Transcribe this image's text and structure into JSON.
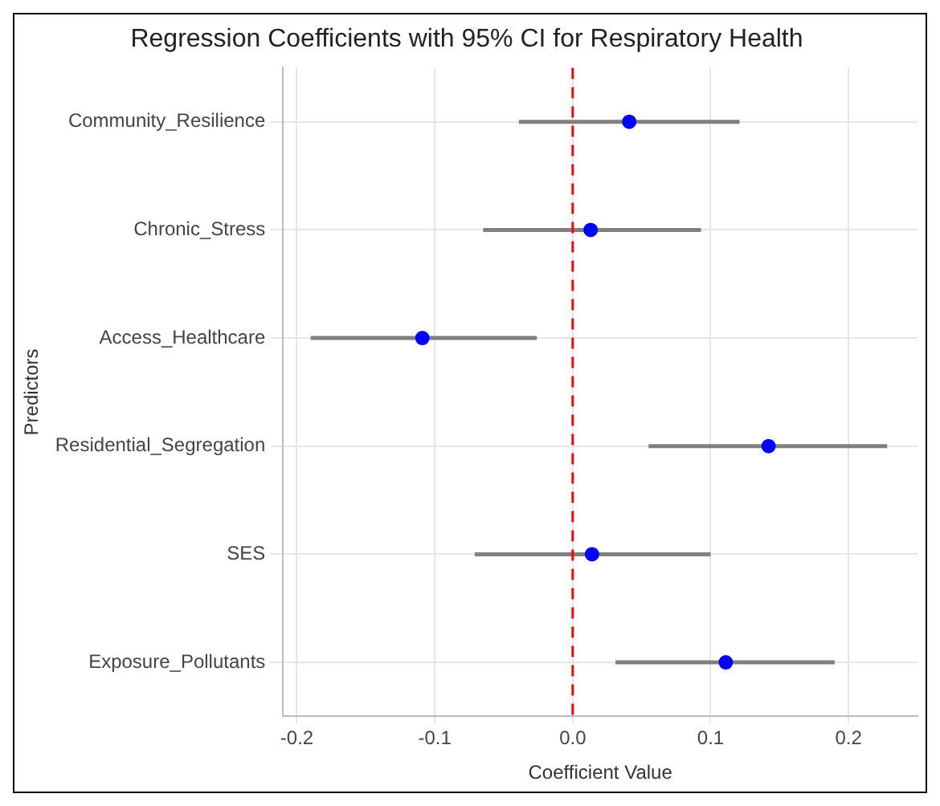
{
  "chart_data": {
    "type": "scatter",
    "title": "Regression Coefficients with 95% CI for Respiratory Health",
    "xlabel": "Coefficient Value",
    "ylabel": "Predictors",
    "orientation": "horizontal",
    "categories": [
      "Community_Resilience",
      "Chronic_Stress",
      "Access_Healthcare",
      "Residential_Segregation",
      "SES",
      "Exposure_Pollutants"
    ],
    "series": [
      {
        "color": "#0000ff",
        "values": [
          0.041,
          0.013,
          -0.109,
          0.142,
          0.014,
          0.111
        ],
        "errors": [
          [
            -0.039,
            0.121
          ],
          [
            -0.065,
            0.093
          ],
          [
            -0.19,
            -0.026
          ],
          [
            0.055,
            0.228
          ],
          [
            -0.071,
            0.1
          ],
          [
            0.031,
            0.19
          ]
        ]
      }
    ],
    "xlim": [
      -0.21,
      0.25
    ],
    "xticks": [
      {
        "value": -0.2,
        "label": "-0.2"
      },
      {
        "value": -0.1,
        "label": "-0.1"
      },
      {
        "value": 0,
        "label": "0.0"
      },
      {
        "value": 0.1,
        "label": "0.1"
      },
      {
        "value": 0.2,
        "label": "0.2"
      }
    ],
    "ref_lines": [
      {
        "axis": "x",
        "value": 0,
        "color": "#ff0000",
        "line_style": "dashed"
      }
    ],
    "grid": true,
    "marker": "circle",
    "legend": false
  }
}
